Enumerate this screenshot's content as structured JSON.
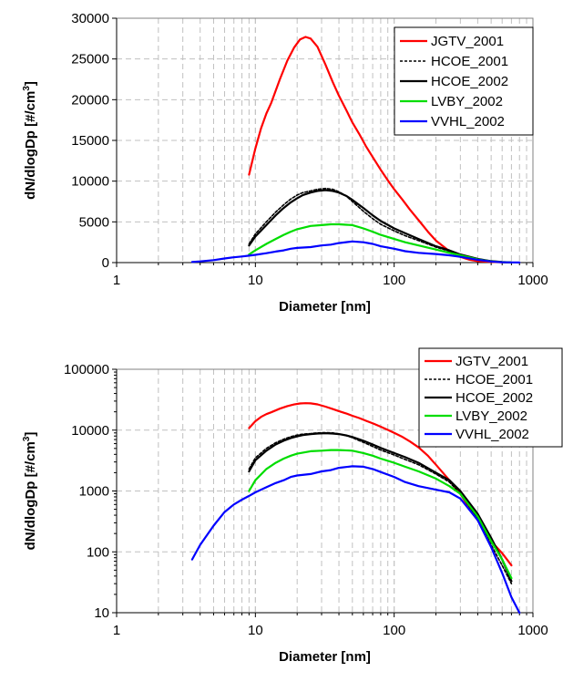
{
  "chart_data": [
    {
      "type": "line",
      "xscale": "log",
      "yscale": "linear",
      "xlim": [
        1,
        1000
      ],
      "ylim": [
        0,
        30000
      ],
      "xticks": [
        "1",
        "10",
        "100",
        "1000"
      ],
      "yticks": [
        "0",
        "5000",
        "10000",
        "15000",
        "20000",
        "25000",
        "30000"
      ],
      "xlabel": "Diameter  [nm]",
      "ylabel": "dN/dlogDp [#/cm",
      "ylabel_sup": "3",
      "ylabel_end": "]",
      "grid": true,
      "legend_position": "top-right",
      "series": [
        {
          "name": "JGTV_2001",
          "color": "#ff0000",
          "dash": "solid",
          "x": [
            9,
            10,
            11,
            12,
            13,
            15,
            17,
            19,
            21,
            23,
            25,
            28,
            32,
            36,
            40,
            45,
            50,
            56,
            63,
            71,
            80,
            90,
            100,
            115,
            130,
            150,
            175,
            200,
            250,
            300,
            350,
            400,
            500,
            600,
            700
          ],
          "y": [
            10800,
            14000,
            16500,
            18300,
            19600,
            22500,
            24800,
            26400,
            27400,
            27700,
            27500,
            26500,
            24300,
            22200,
            20500,
            18800,
            17200,
            15800,
            14200,
            12800,
            11400,
            10100,
            9000,
            7700,
            6500,
            5200,
            3800,
            2700,
            1400,
            700,
            350,
            180,
            80,
            30,
            10
          ]
        },
        {
          "name": "HCOE_2001",
          "color": "#000000",
          "dash": "dashed",
          "x": [
            9,
            10,
            12,
            14,
            16,
            18,
            20,
            22,
            25,
            28,
            32,
            36,
            40,
            45,
            50,
            60,
            70,
            80,
            100,
            120,
            150,
            200,
            250,
            300,
            400,
            500,
            600,
            700
          ],
          "y": [
            2300,
            3500,
            5000,
            6200,
            7100,
            7800,
            8300,
            8600,
            8800,
            9000,
            9100,
            9000,
            8700,
            8200,
            7500,
            6300,
            5400,
            4700,
            3900,
            3300,
            2700,
            1900,
            1400,
            900,
            400,
            150,
            60,
            20
          ]
        },
        {
          "name": "HCOE_2002",
          "color": "#000000",
          "dash": "solid",
          "x": [
            9,
            10,
            12,
            14,
            16,
            18,
            20,
            22,
            25,
            28,
            32,
            36,
            40,
            45,
            50,
            60,
            70,
            80,
            100,
            120,
            150,
            200,
            250,
            300,
            400,
            500,
            600,
            700
          ],
          "y": [
            2100,
            3200,
            4600,
            5800,
            6700,
            7400,
            7900,
            8300,
            8600,
            8800,
            8900,
            8800,
            8600,
            8200,
            7700,
            6700,
            5800,
            5100,
            4200,
            3600,
            2900,
            2000,
            1500,
            1000,
            450,
            180,
            70,
            25
          ]
        },
        {
          "name": "LVBY_2002",
          "color": "#00dd00",
          "dash": "solid",
          "x": [
            9,
            10,
            12,
            14,
            16,
            18,
            20,
            25,
            30,
            35,
            40,
            50,
            60,
            70,
            80,
            100,
            120,
            150,
            200,
            250,
            300,
            400,
            500,
            600,
            700
          ],
          "y": [
            1000,
            1500,
            2300,
            2900,
            3400,
            3800,
            4100,
            4500,
            4600,
            4700,
            4700,
            4600,
            4200,
            3800,
            3400,
            2900,
            2500,
            2100,
            1600,
            1200,
            900,
            400,
            150,
            60,
            25
          ]
        },
        {
          "name": "VVHL_2002",
          "color": "#0000ff",
          "dash": "solid",
          "x": [
            3.5,
            4,
            5,
            6,
            7,
            8,
            9,
            10,
            12,
            14,
            16,
            18,
            20,
            25,
            30,
            35,
            40,
            50,
            60,
            70,
            80,
            100,
            120,
            150,
            200,
            250,
            300,
            400,
            500,
            600,
            700,
            800
          ],
          "y": [
            80,
            150,
            300,
            500,
            650,
            750,
            850,
            950,
            1150,
            1350,
            1500,
            1700,
            1800,
            1900,
            2100,
            2200,
            2400,
            2600,
            2500,
            2300,
            2000,
            1700,
            1400,
            1200,
            1050,
            900,
            700,
            350,
            130,
            50,
            20,
            10
          ]
        }
      ]
    },
    {
      "type": "line",
      "xscale": "log",
      "yscale": "log",
      "xlim": [
        1,
        1000
      ],
      "ylim": [
        10,
        100000
      ],
      "xticks": [
        "1",
        "10",
        "100",
        "1000"
      ],
      "yticks": [
        "10",
        "100",
        "1000",
        "10000",
        "100000"
      ],
      "xlabel": "Diameter  [nm]",
      "ylabel": "dN/dlogDp [#/cm",
      "ylabel_sup": "3",
      "ylabel_end": "]",
      "grid": true,
      "legend_position": "top-right",
      "series": [
        {
          "name": "JGTV_2001",
          "color": "#ff0000",
          "dash": "solid",
          "x": [
            9,
            10,
            11,
            12,
            13,
            15,
            17,
            19,
            21,
            23,
            25,
            28,
            32,
            36,
            40,
            45,
            50,
            56,
            63,
            71,
            80,
            90,
            100,
            115,
            130,
            150,
            175,
            200,
            250,
            300,
            350,
            400,
            500,
            600,
            700
          ],
          "y": [
            10800,
            14000,
            16500,
            18300,
            19600,
            22500,
            24800,
            26400,
            27400,
            27700,
            27500,
            26500,
            24300,
            22200,
            20500,
            18800,
            17200,
            15800,
            14200,
            12800,
            11400,
            10100,
            9000,
            7700,
            6500,
            5200,
            3800,
            2700,
            1500,
            900,
            520,
            330,
            150,
            95,
            60
          ]
        },
        {
          "name": "HCOE_2001",
          "color": "#000000",
          "dash": "dashed",
          "x": [
            9,
            10,
            12,
            14,
            16,
            18,
            20,
            22,
            25,
            28,
            32,
            36,
            40,
            45,
            50,
            60,
            70,
            80,
            100,
            120,
            150,
            200,
            250,
            300,
            400,
            500,
            600,
            700
          ],
          "y": [
            2300,
            3500,
            5000,
            6200,
            7100,
            7800,
            8300,
            8600,
            8800,
            9000,
            9100,
            9000,
            8700,
            8200,
            7500,
            6300,
            5400,
            4700,
            3900,
            3300,
            2700,
            1900,
            1400,
            900,
            350,
            130,
            60,
            30
          ]
        },
        {
          "name": "HCOE_2002",
          "color": "#000000",
          "dash": "solid",
          "x": [
            9,
            10,
            12,
            14,
            16,
            18,
            20,
            22,
            25,
            28,
            32,
            36,
            40,
            45,
            50,
            60,
            70,
            80,
            100,
            120,
            150,
            200,
            250,
            300,
            400,
            500,
            600,
            700
          ],
          "y": [
            2100,
            3200,
            4600,
            5800,
            6700,
            7400,
            7900,
            8300,
            8600,
            8800,
            8900,
            8800,
            8600,
            8200,
            7700,
            6700,
            5800,
            5100,
            4200,
            3600,
            2900,
            2000,
            1500,
            1000,
            420,
            170,
            75,
            33
          ]
        },
        {
          "name": "LVBY_2002",
          "color": "#00dd00",
          "dash": "solid",
          "x": [
            9,
            10,
            12,
            14,
            16,
            18,
            20,
            25,
            30,
            35,
            40,
            50,
            60,
            70,
            80,
            100,
            120,
            150,
            200,
            250,
            300,
            400,
            500,
            600,
            700
          ],
          "y": [
            1000,
            1500,
            2300,
            2900,
            3400,
            3800,
            4100,
            4500,
            4600,
            4700,
            4700,
            4600,
            4200,
            3800,
            3400,
            2900,
            2500,
            2100,
            1600,
            1200,
            900,
            380,
            150,
            75,
            37
          ]
        },
        {
          "name": "VVHL_2002",
          "color": "#0000ff",
          "dash": "solid",
          "x": [
            3.5,
            4,
            5,
            6,
            7,
            8,
            9,
            10,
            12,
            14,
            16,
            18,
            20,
            25,
            30,
            35,
            40,
            50,
            60,
            70,
            80,
            100,
            120,
            150,
            200,
            250,
            300,
            400,
            500,
            600,
            700,
            800
          ],
          "y": [
            75,
            130,
            270,
            450,
            600,
            720,
            830,
            950,
            1150,
            1350,
            1500,
            1700,
            1800,
            1900,
            2100,
            2200,
            2400,
            2550,
            2500,
            2300,
            2050,
            1700,
            1400,
            1200,
            1050,
            950,
            750,
            330,
            120,
            45,
            18,
            10
          ]
        }
      ]
    }
  ]
}
